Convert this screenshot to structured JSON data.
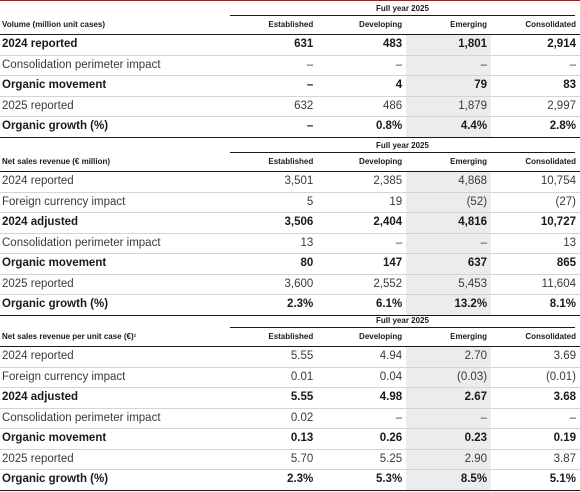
{
  "columns": [
    "Established",
    "Developing",
    "Emerging",
    "Consolidated"
  ],
  "tables": [
    {
      "period": "Full year 2025",
      "header": "Volume (million unit cases)",
      "rows": [
        {
          "label": "2024 reported",
          "bold": true,
          "values": [
            "631",
            "483",
            "1,801",
            "2,914"
          ]
        },
        {
          "label": "Consolidation perimeter impact",
          "bold": false,
          "values": [
            "–",
            "–",
            "–",
            "–"
          ]
        },
        {
          "label": "Organic movement",
          "bold": true,
          "values": [
            "–",
            "4",
            "79",
            "83"
          ]
        },
        {
          "label": "2025 reported",
          "bold": false,
          "values": [
            "632",
            "486",
            "1,879",
            "2,997"
          ]
        },
        {
          "label": "Organic growth (%)",
          "bold": true,
          "values": [
            "–",
            "0.8%",
            "4.4%",
            "2.8%"
          ]
        }
      ]
    },
    {
      "period": "Full year 2025",
      "header": "Net sales revenue (€ million)",
      "rows": [
        {
          "label": "2024 reported",
          "bold": false,
          "values": [
            "3,501",
            "2,385",
            "4,868",
            "10,754"
          ]
        },
        {
          "label": "Foreign currency impact",
          "bold": false,
          "values": [
            "5",
            "19",
            "(52)",
            "(27)"
          ]
        },
        {
          "label": "2024 adjusted",
          "bold": true,
          "values": [
            "3,506",
            "2,404",
            "4,816",
            "10,727"
          ]
        },
        {
          "label": "Consolidation perimeter impact",
          "bold": false,
          "values": [
            "13",
            "–",
            "–",
            "13"
          ]
        },
        {
          "label": "Organic movement",
          "bold": true,
          "values": [
            "80",
            "147",
            "637",
            "865"
          ]
        },
        {
          "label": "2025 reported",
          "bold": false,
          "values": [
            "3,600",
            "2,552",
            "5,453",
            "11,604"
          ]
        },
        {
          "label": "Organic growth (%)",
          "bold": true,
          "values": [
            "2.3%",
            "6.1%",
            "13.2%",
            "8.1%"
          ]
        }
      ]
    },
    {
      "period": "Full year 2025",
      "header": "Net sales revenue per unit case (€)¹",
      "rows": [
        {
          "label": "2024 reported",
          "bold": false,
          "values": [
            "5.55",
            "4.94",
            "2.70",
            "3.69"
          ]
        },
        {
          "label": "Foreign currency impact",
          "bold": false,
          "values": [
            "0.01",
            "0.04",
            "(0.03)",
            "(0.01)"
          ]
        },
        {
          "label": "2024 adjusted",
          "bold": true,
          "values": [
            "5.55",
            "4.98",
            "2.67",
            "3.68"
          ]
        },
        {
          "label": "Consolidation perimeter impact",
          "bold": false,
          "values": [
            "0.02",
            "–",
            "–",
            "–"
          ]
        },
        {
          "label": "Organic movement",
          "bold": true,
          "values": [
            "0.13",
            "0.26",
            "0.23",
            "0.19"
          ]
        },
        {
          "label": "2025 reported",
          "bold": false,
          "values": [
            "5.70",
            "5.25",
            "2.90",
            "3.87"
          ]
        },
        {
          "label": "Organic growth (%)",
          "bold": true,
          "values": [
            "2.3%",
            "5.3%",
            "8.5%",
            "5.1%"
          ]
        }
      ]
    }
  ]
}
